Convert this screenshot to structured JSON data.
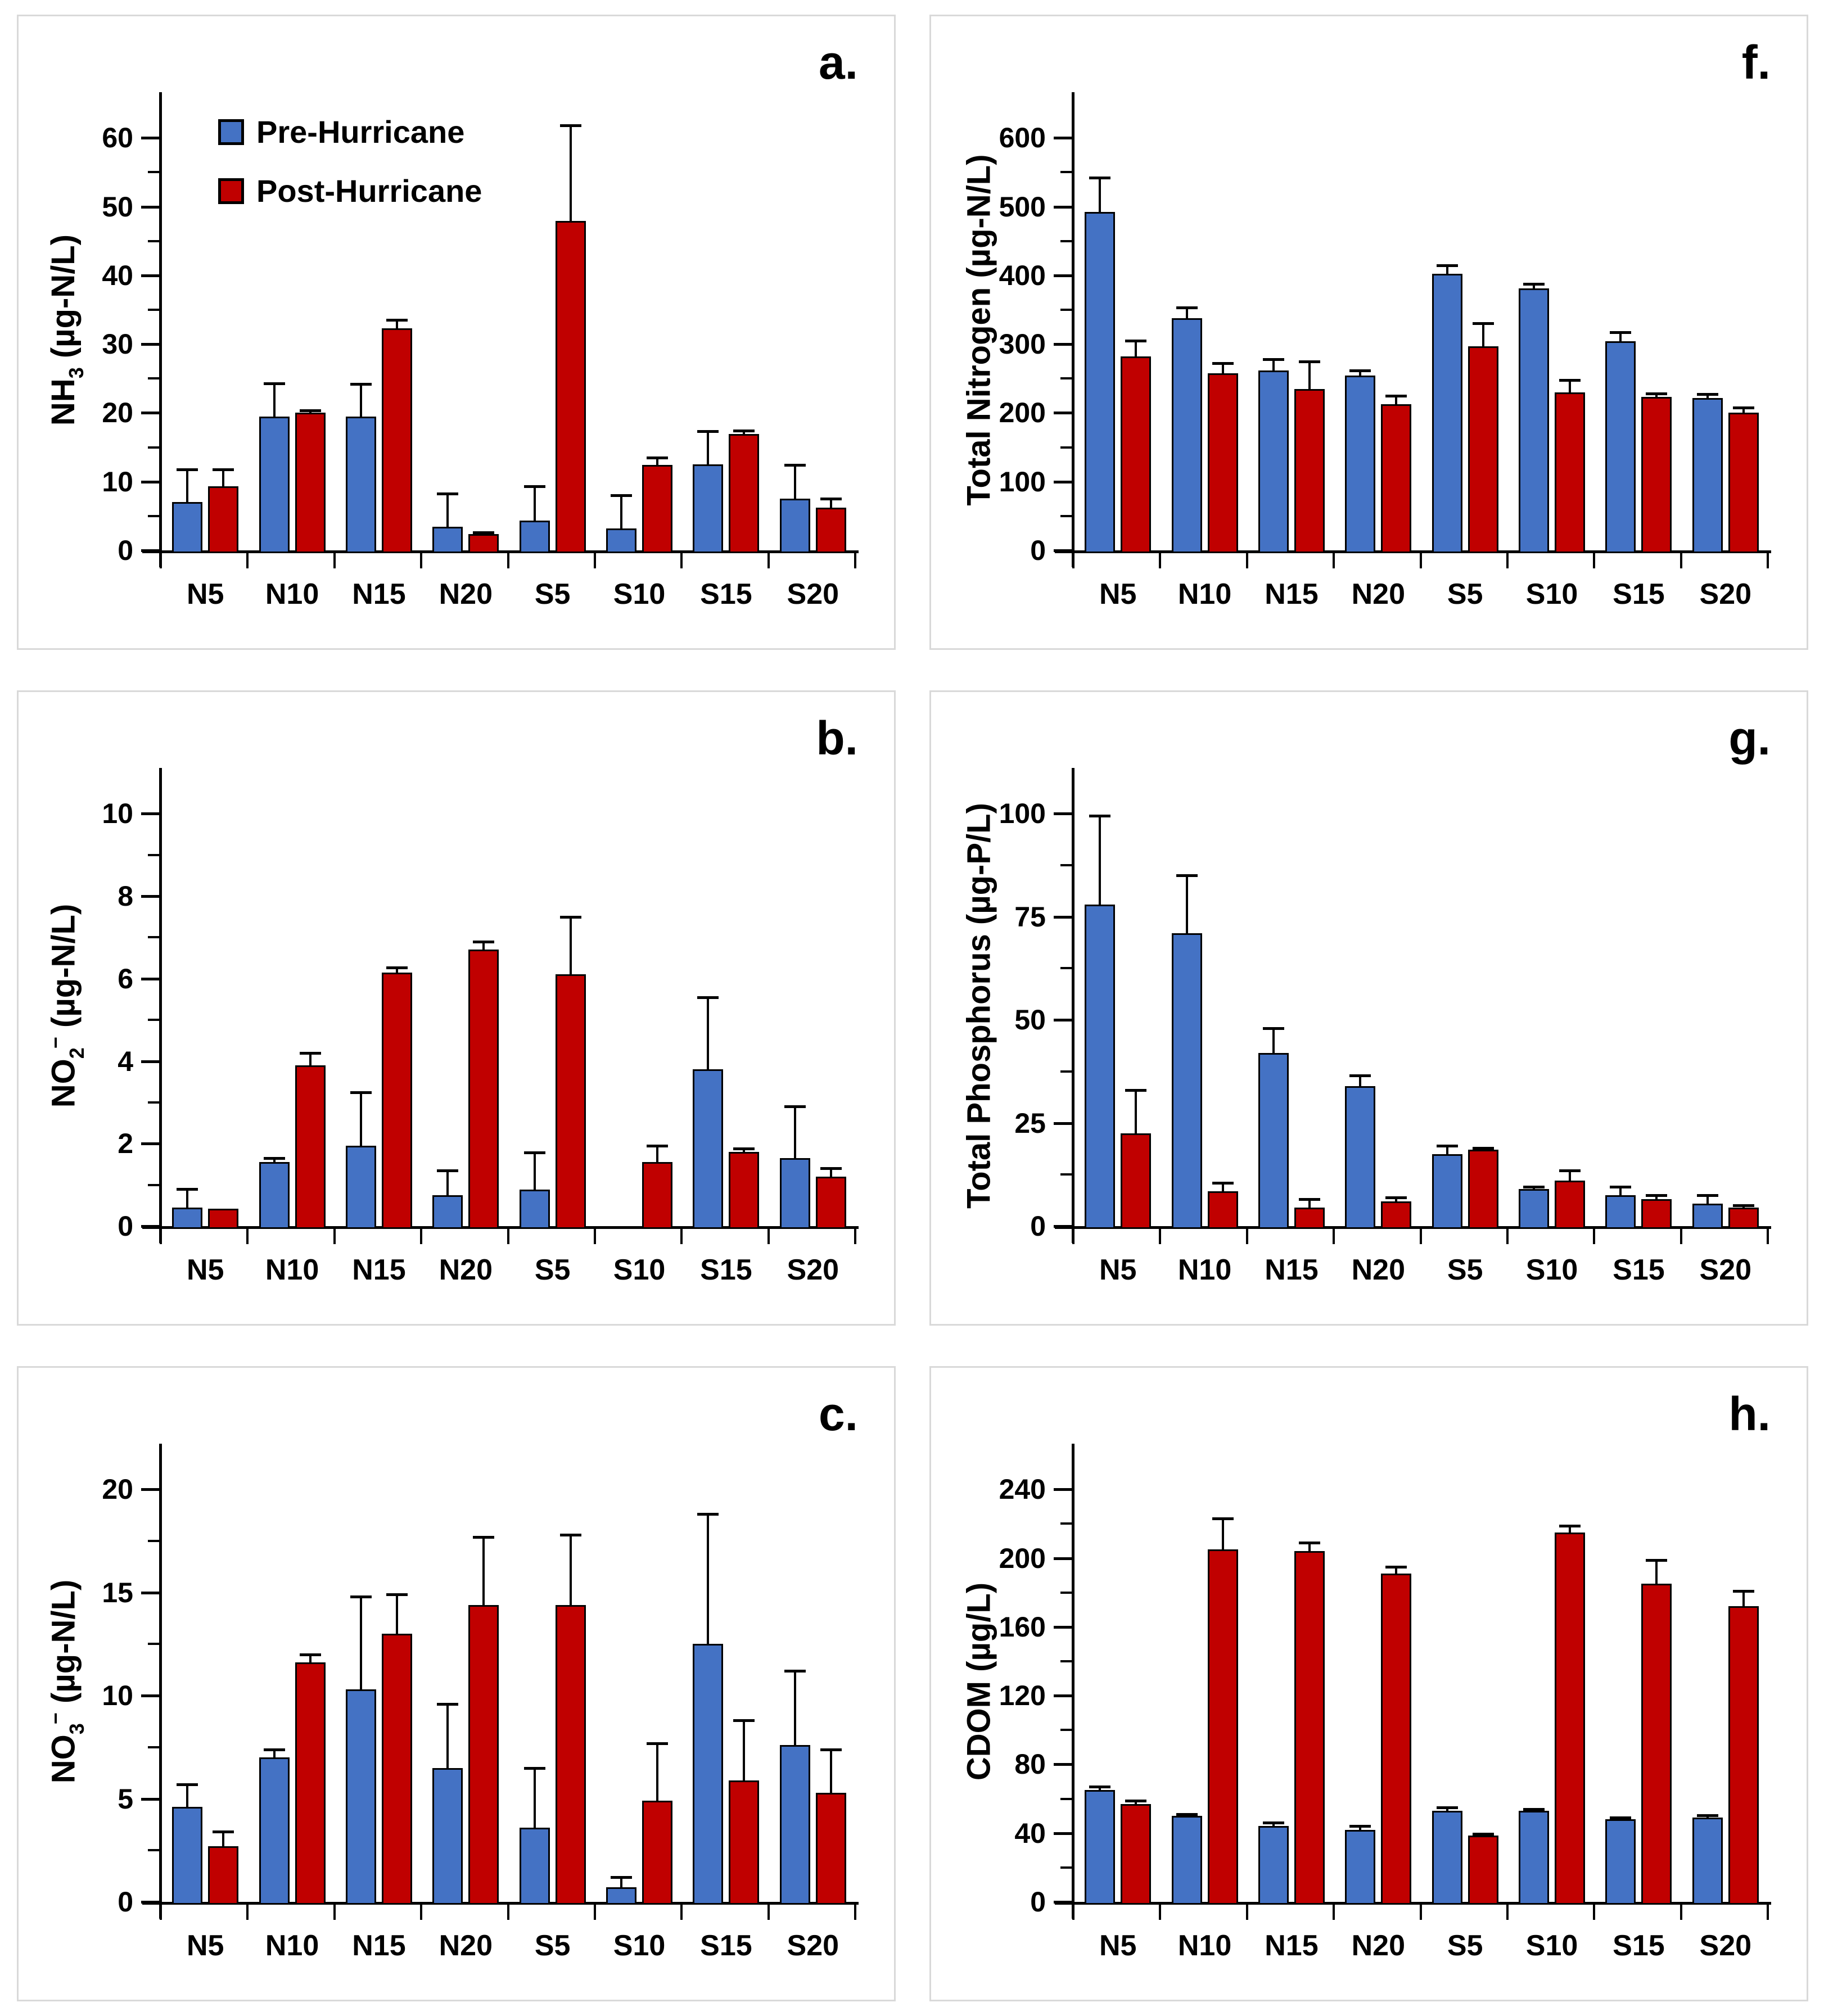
{
  "legend": {
    "pre_label": "Pre-Hurricane",
    "post_label": "Post-Hurricane"
  },
  "colors": {
    "pre_bar": "#4472C4",
    "post_bar": "#C00000",
    "bar_outline": "#000000",
    "axis": "#000000",
    "panel_border": "#D9D9D9",
    "background": "#FFFFFF"
  },
  "chart_data": [
    {
      "panel_label": "a.",
      "type": "bar",
      "ylabel_text": "NH₃ (µg-N/L)",
      "ylabel_segments": [
        {
          "t": "NH"
        },
        {
          "t": "3",
          "v": "sub"
        },
        {
          "t": " (µg-N/L)"
        }
      ],
      "categories": [
        "N5",
        "N10",
        "N15",
        "N20",
        "S5",
        "S10",
        "S15",
        "S20"
      ],
      "yticks": [
        "0",
        "10",
        "20",
        "30",
        "40",
        "50",
        "60"
      ],
      "ylim": [
        0,
        60
      ],
      "ytick_step": 10,
      "minor_step": 5,
      "legend_visible": true,
      "error_bars": true,
      "series": [
        {
          "name": "Pre-Hurricane",
          "color_key": "pre_bar",
          "values": [
            7.0,
            19.5,
            19.5,
            3.4,
            4.3,
            3.2,
            12.5,
            7.5
          ],
          "errors": [
            4.8,
            4.8,
            4.7,
            4.9,
            5.0,
            4.8,
            4.8,
            4.9
          ]
        },
        {
          "name": "Post-Hurricane",
          "color_key": "post_bar",
          "values": [
            9.3,
            20.0,
            32.3,
            2.4,
            47.9,
            12.4,
            16.9,
            6.2
          ],
          "errors": [
            2.5,
            0.4,
            1.2,
            0.2,
            13.9,
            1.1,
            0.5,
            1.3
          ]
        }
      ]
    },
    {
      "panel_label": "b.",
      "type": "bar",
      "ylabel_text": "NO₂⁻ (µg-N/L)",
      "ylabel_segments": [
        {
          "t": "NO"
        },
        {
          "t": "2",
          "v": "sub"
        },
        {
          "t": "−",
          "v": "sup"
        },
        {
          "t": " (µg-N/L)"
        }
      ],
      "categories": [
        "N5",
        "N10",
        "N15",
        "N20",
        "S5",
        "S10",
        "S15",
        "S20"
      ],
      "yticks": [
        "0",
        "2",
        "4",
        "6",
        "8",
        "10"
      ],
      "ylim": [
        0,
        10
      ],
      "ytick_step": 2,
      "minor_step": 1,
      "legend_visible": false,
      "error_bars": true,
      "series": [
        {
          "name": "Pre-Hurricane",
          "color_key": "pre_bar",
          "values": [
            0.45,
            1.55,
            1.95,
            0.75,
            0.88,
            0,
            3.8,
            1.65
          ],
          "errors": [
            0.45,
            0.1,
            1.3,
            0.6,
            0.9,
            0,
            1.75,
            1.25
          ]
        },
        {
          "name": "Post-Hurricane",
          "color_key": "post_bar",
          "values": [
            0.42,
            3.9,
            6.15,
            6.7,
            6.1,
            1.55,
            1.8,
            1.2
          ],
          "errors": [
            0,
            0.3,
            0.12,
            0.2,
            1.4,
            0.4,
            0.08,
            0.2
          ]
        }
      ]
    },
    {
      "panel_label": "c.",
      "type": "bar",
      "ylabel_text": "NO₃⁻ (µg-N/L)",
      "ylabel_segments": [
        {
          "t": "NO"
        },
        {
          "t": "3",
          "v": "sub"
        },
        {
          "t": "−",
          "v": "sup"
        },
        {
          "t": " (µg-N/L)"
        }
      ],
      "categories": [
        "N5",
        "N10",
        "N15",
        "N20",
        "S5",
        "S10",
        "S15",
        "S20"
      ],
      "yticks": [
        "0",
        "5",
        "10",
        "15",
        "20"
      ],
      "ylim": [
        0,
        20
      ],
      "ytick_step": 5,
      "minor_step": 2.5,
      "legend_visible": false,
      "error_bars": true,
      "series": [
        {
          "name": "Pre-Hurricane",
          "color_key": "pre_bar",
          "values": [
            4.6,
            7.0,
            10.3,
            6.5,
            3.6,
            0.7,
            12.5,
            7.6
          ],
          "errors": [
            1.1,
            0.4,
            4.5,
            3.1,
            2.9,
            0.5,
            6.3,
            3.6
          ]
        },
        {
          "name": "Post-Hurricane",
          "color_key": "post_bar",
          "values": [
            2.7,
            11.6,
            13.0,
            14.4,
            14.4,
            4.9,
            5.9,
            5.3
          ],
          "errors": [
            0.7,
            0.4,
            1.9,
            3.3,
            3.4,
            2.8,
            2.9,
            2.1
          ]
        }
      ]
    },
    {
      "panel_label": "f.",
      "type": "bar",
      "ylabel_text": "Total Nitrogen (µg-N/L)",
      "ylabel_segments": [
        {
          "t": "Total Nitrogen (µg-N/L)"
        }
      ],
      "categories": [
        "N5",
        "N10",
        "N15",
        "N20",
        "S5",
        "S10",
        "S15",
        "S20"
      ],
      "yticks": [
        "0",
        "100",
        "200",
        "300",
        "400",
        "500",
        "600"
      ],
      "ylim": [
        0,
        600
      ],
      "ytick_step": 100,
      "minor_step": 50,
      "legend_visible": false,
      "error_bars": true,
      "series": [
        {
          "name": "Pre-Hurricane",
          "color_key": "pre_bar",
          "values": [
            492,
            338,
            262,
            254,
            402,
            381,
            304,
            222
          ],
          "errors": [
            50,
            15,
            16,
            8,
            13,
            7,
            13,
            5
          ]
        },
        {
          "name": "Post-Hurricane",
          "color_key": "post_bar",
          "values": [
            282,
            258,
            235,
            213,
            297,
            230,
            223,
            200
          ],
          "errors": [
            23,
            14,
            40,
            12,
            33,
            18,
            5,
            8
          ]
        }
      ]
    },
    {
      "panel_label": "g.",
      "type": "bar",
      "ylabel_text": "Total Phosphorus (µg-P/L)",
      "ylabel_segments": [
        {
          "t": "Total Phosphorus (µg-P/L)"
        }
      ],
      "categories": [
        "N5",
        "N10",
        "N15",
        "N20",
        "S5",
        "S10",
        "S15",
        "S20"
      ],
      "yticks": [
        "0",
        "25",
        "50",
        "75",
        "100"
      ],
      "ylim": [
        0,
        100
      ],
      "ytick_step": 25,
      "minor_step": 12.5,
      "legend_visible": false,
      "error_bars": true,
      "series": [
        {
          "name": "Pre-Hurricane",
          "color_key": "pre_bar",
          "values": [
            78,
            71,
            42,
            34,
            17.5,
            9,
            7.5,
            5.5
          ],
          "errors": [
            21.5,
            14,
            6,
            2.5,
            2,
            0.5,
            2,
            2
          ]
        },
        {
          "name": "Post-Hurricane",
          "color_key": "post_bar",
          "values": [
            22.5,
            8.5,
            4.5,
            6,
            18.5,
            11,
            6.5,
            4.5
          ],
          "errors": [
            10.5,
            2,
            2,
            1,
            0.5,
            2.5,
            1,
            0.5
          ]
        }
      ]
    },
    {
      "panel_label": "h.",
      "type": "bar",
      "ylabel_text": "CDOM (µg/L)",
      "ylabel_segments": [
        {
          "t": "CDOM (µg/L)"
        }
      ],
      "categories": [
        "N5",
        "N10",
        "N15",
        "N20",
        "S5",
        "S10",
        "S15",
        "S20"
      ],
      "yticks": [
        "0",
        "40",
        "80",
        "120",
        "160",
        "200",
        "240"
      ],
      "ylim": [
        0,
        240
      ],
      "ytick_step": 40,
      "minor_step": 20,
      "legend_visible": false,
      "error_bars": true,
      "series": [
        {
          "name": "Pre-Hurricane",
          "color_key": "pre_bar",
          "values": [
            65,
            50,
            44,
            42,
            53,
            53,
            48,
            49
          ],
          "errors": [
            2,
            1,
            2,
            2,
            2,
            1,
            1,
            1.5
          ]
        },
        {
          "name": "Post-Hurricane",
          "color_key": "post_bar",
          "values": [
            57,
            205,
            204,
            191,
            38.5,
            215,
            185,
            172
          ],
          "errors": [
            2,
            18,
            5,
            4,
            1,
            4,
            14,
            9
          ]
        }
      ]
    }
  ]
}
